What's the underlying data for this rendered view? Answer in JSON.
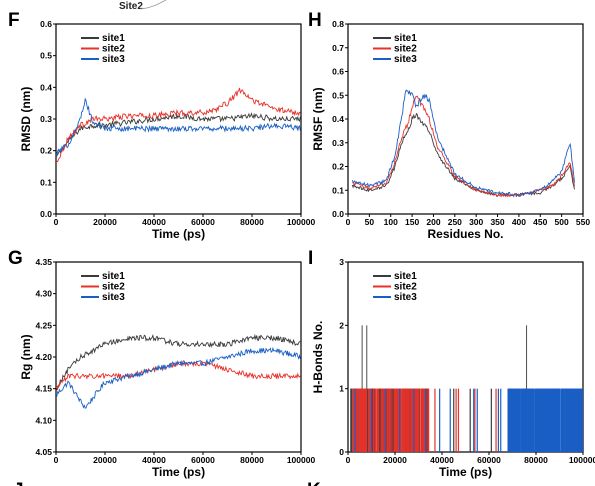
{
  "header": {
    "text": "Site2"
  },
  "colors": {
    "site1": "#3a3a3a",
    "site2": "#e8312a",
    "site3": "#1a5fc4"
  },
  "bottom_letters": [
    "J",
    "K"
  ],
  "chart_data": [
    {
      "id": "F",
      "letter": "F",
      "type": "line",
      "xlabel": "Time (ps)",
      "ylabel": "RMSD (nm)",
      "xlim": [
        0,
        100000
      ],
      "ylim": [
        0.0,
        0.6
      ],
      "xticks": [
        0,
        20000,
        40000,
        60000,
        80000,
        100000
      ],
      "xtick_labels": [
        "0",
        "20000",
        "40000",
        "60000",
        "80000",
        "100000"
      ],
      "yticks": [
        0.0,
        0.1,
        0.2,
        0.3,
        0.4,
        0.5,
        0.6
      ],
      "ytick_labels": [
        "0.0",
        "0.1",
        "0.2",
        "0.3",
        "0.4",
        "0.5",
        "0.6"
      ],
      "legend": [
        "site1",
        "site2",
        "site3"
      ],
      "legend_position": "top-left",
      "series": [
        {
          "name": "site1",
          "x": [
            0,
            5000,
            10000,
            15000,
            20000,
            30000,
            40000,
            50000,
            60000,
            70000,
            80000,
            90000,
            100000
          ],
          "values": [
            0.18,
            0.23,
            0.27,
            0.28,
            0.28,
            0.29,
            0.3,
            0.31,
            0.3,
            0.3,
            0.31,
            0.3,
            0.3
          ]
        },
        {
          "name": "site2",
          "x": [
            0,
            5000,
            10000,
            15000,
            20000,
            30000,
            40000,
            50000,
            60000,
            65000,
            70000,
            75000,
            80000,
            90000,
            100000
          ],
          "values": [
            0.16,
            0.24,
            0.28,
            0.3,
            0.3,
            0.31,
            0.31,
            0.32,
            0.32,
            0.33,
            0.35,
            0.39,
            0.36,
            0.33,
            0.32
          ]
        },
        {
          "name": "site3",
          "x": [
            0,
            5000,
            10000,
            12000,
            15000,
            20000,
            30000,
            40000,
            50000,
            60000,
            70000,
            80000,
            90000,
            100000
          ],
          "values": [
            0.19,
            0.22,
            0.3,
            0.36,
            0.29,
            0.27,
            0.27,
            0.27,
            0.27,
            0.27,
            0.27,
            0.27,
            0.28,
            0.27
          ]
        }
      ]
    },
    {
      "id": "H",
      "letter": "H",
      "type": "line",
      "xlabel": "Residues No.",
      "ylabel": "RMSF (nm)",
      "xlim": [
        0,
        550
      ],
      "ylim": [
        0.0,
        0.8
      ],
      "xticks": [
        0,
        50,
        100,
        150,
        200,
        250,
        300,
        350,
        400,
        450,
        500,
        550
      ],
      "xtick_labels": [
        "0",
        "50",
        "100",
        "150",
        "200",
        "250",
        "300",
        "350",
        "400",
        "450",
        "500",
        "550"
      ],
      "yticks": [
        0.0,
        0.1,
        0.2,
        0.3,
        0.4,
        0.5,
        0.6,
        0.7,
        0.8
      ],
      "ytick_labels": [
        "0.0",
        "0.1",
        "0.2",
        "0.3",
        "0.4",
        "0.5",
        "0.6",
        "0.7",
        "0.8"
      ],
      "legend": [
        "site1",
        "site2",
        "site3"
      ],
      "legend_position": "top-left",
      "series": [
        {
          "name": "site1",
          "x": [
            10,
            50,
            90,
            110,
            125,
            140,
            150,
            160,
            175,
            190,
            210,
            250,
            300,
            350,
            400,
            450,
            480,
            500,
            520,
            530
          ],
          "values": [
            0.12,
            0.1,
            0.12,
            0.2,
            0.3,
            0.35,
            0.4,
            0.42,
            0.38,
            0.35,
            0.25,
            0.15,
            0.1,
            0.08,
            0.08,
            0.09,
            0.12,
            0.15,
            0.2,
            0.1
          ]
        },
        {
          "name": "site2",
          "x": [
            10,
            50,
            90,
            110,
            125,
            140,
            150,
            160,
            175,
            190,
            210,
            250,
            300,
            350,
            400,
            450,
            480,
            500,
            520,
            530
          ],
          "values": [
            0.13,
            0.11,
            0.13,
            0.22,
            0.32,
            0.38,
            0.45,
            0.5,
            0.45,
            0.4,
            0.28,
            0.16,
            0.1,
            0.08,
            0.08,
            0.1,
            0.12,
            0.16,
            0.22,
            0.12
          ]
        },
        {
          "name": "site3",
          "x": [
            10,
            50,
            90,
            110,
            125,
            135,
            150,
            160,
            175,
            190,
            210,
            250,
            300,
            350,
            400,
            450,
            480,
            500,
            520,
            530
          ],
          "values": [
            0.14,
            0.12,
            0.14,
            0.25,
            0.4,
            0.52,
            0.5,
            0.45,
            0.5,
            0.48,
            0.32,
            0.17,
            0.11,
            0.09,
            0.08,
            0.1,
            0.14,
            0.18,
            0.3,
            0.13
          ]
        }
      ]
    },
    {
      "id": "G",
      "letter": "G",
      "type": "line",
      "xlabel": "Time (ps)",
      "ylabel": "Rg (nm)",
      "xlim": [
        0,
        100000
      ],
      "ylim": [
        4.05,
        4.35
      ],
      "xticks": [
        0,
        20000,
        40000,
        60000,
        80000,
        100000
      ],
      "xtick_labels": [
        "0",
        "20000",
        "40000",
        "60000",
        "80000",
        "100000"
      ],
      "yticks": [
        4.05,
        4.1,
        4.15,
        4.2,
        4.25,
        4.3,
        4.35
      ],
      "ytick_labels": [
        "4.05",
        "4.10",
        "4.15",
        "4.20",
        "4.25",
        "4.30",
        "4.35"
      ],
      "legend": [
        "site1",
        "site2",
        "site3"
      ],
      "legend_position": "top-left",
      "series": [
        {
          "name": "site1",
          "x": [
            0,
            5000,
            10000,
            20000,
            30000,
            40000,
            50000,
            60000,
            70000,
            80000,
            90000,
            100000
          ],
          "values": [
            4.15,
            4.18,
            4.2,
            4.22,
            4.23,
            4.23,
            4.22,
            4.22,
            4.22,
            4.23,
            4.23,
            4.22
          ]
        },
        {
          "name": "site2",
          "x": [
            0,
            5000,
            10000,
            20000,
            30000,
            40000,
            50000,
            60000,
            70000,
            80000,
            90000,
            100000
          ],
          "values": [
            4.15,
            4.17,
            4.17,
            4.17,
            4.17,
            4.18,
            4.19,
            4.19,
            4.18,
            4.17,
            4.17,
            4.17
          ]
        },
        {
          "name": "site3",
          "x": [
            0,
            5000,
            10000,
            12000,
            20000,
            30000,
            40000,
            50000,
            60000,
            70000,
            80000,
            90000,
            100000
          ],
          "values": [
            4.14,
            4.16,
            4.13,
            4.12,
            4.16,
            4.17,
            4.18,
            4.19,
            4.19,
            4.2,
            4.21,
            4.21,
            4.2
          ]
        }
      ]
    },
    {
      "id": "I",
      "letter": "I",
      "type": "bar",
      "xlabel": "Time (ps)",
      "ylabel": "H-Bonds No.",
      "xlim": [
        0,
        100000
      ],
      "ylim": [
        0,
        3
      ],
      "xticks": [
        0,
        20000,
        40000,
        60000,
        80000,
        100000
      ],
      "xtick_labels": [
        "0",
        "20000",
        "40000",
        "60000",
        "80000",
        "100000"
      ],
      "yticks": [
        0,
        1,
        2,
        3
      ],
      "ytick_labels": [
        "0",
        "1",
        "2",
        "3"
      ],
      "legend": [
        "site1",
        "site2",
        "site3"
      ],
      "legend_position": "top-left",
      "series": [
        {
          "name": "site1",
          "spikes_of_2": [
            6000,
            8000,
            76000
          ],
          "ones_range": [
            1000,
            34000
          ],
          "sparse_ones": [
            45000,
            52000,
            61000,
            78000,
            82000,
            88000,
            95000
          ]
        },
        {
          "name": "site2",
          "ones_range": [
            2000,
            34500
          ],
          "sparse_ones": [
            37000,
            46000,
            47000,
            54000,
            63000,
            84000,
            86000,
            92000
          ]
        },
        {
          "name": "site3",
          "ones_range": [
            34500,
            34500
          ],
          "sparse_ones": [
            3000,
            10000,
            16000,
            22000,
            28000,
            33000,
            39000,
            43500,
            53500,
            55000,
            64000,
            65000
          ],
          "dense_range": [
            68000,
            101000
          ]
        }
      ]
    }
  ]
}
